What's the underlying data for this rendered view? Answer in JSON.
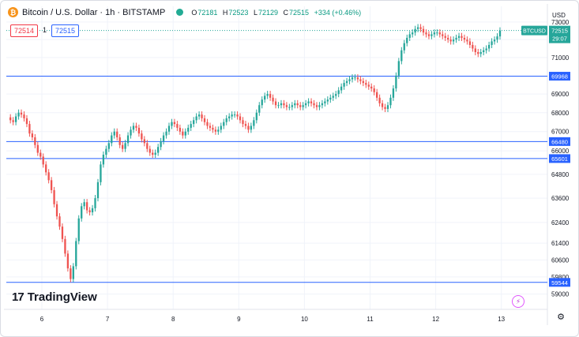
{
  "header": {
    "symbol_title": "Bitcoin / U.S. Dollar · 1h · BITSTAMP",
    "coin_icon": "bitcoin-icon",
    "ohlc": {
      "o_label": "O",
      "o": "72181",
      "h_label": "H",
      "h": "72523",
      "l_label": "L",
      "l": "72129",
      "c_label": "C",
      "c": "72515",
      "change": "+334 (+0.46%)"
    },
    "sell_price": "72514",
    "spread": "1",
    "buy_price": "72515"
  },
  "currency_label": "USD",
  "branding": {
    "logo_mark": "17",
    "logo_text": "TradingView"
  },
  "icons": {
    "settings": "gear-icon",
    "flash": "lightning-icon"
  },
  "colors": {
    "up": "#26a69a",
    "down": "#ef5350",
    "hline": "#2962ff",
    "axis_text": "#131722",
    "current_price_bg": "#26a69a"
  },
  "chart_data": {
    "type": "candlestick",
    "title": "Bitcoin / U.S. Dollar · 1h · BITSTAMP",
    "x_ticks": [
      "6",
      "7",
      "8",
      "9",
      "10",
      "11",
      "12",
      "13"
    ],
    "y_ticks": [
      73000,
      72000,
      71000,
      69000,
      68000,
      67000,
      66000,
      64800,
      63600,
      62400,
      61400,
      60600,
      59800,
      59000
    ],
    "ylim": [
      58300,
      73900
    ],
    "grid": true,
    "log_scale": true,
    "horizontal_levels": [
      {
        "label": "69968",
        "value": 69968
      },
      {
        "label": "66480",
        "value": 66480
      },
      {
        "label": "65601",
        "value": 65601
      },
      {
        "label": "59544",
        "value": 59544
      }
    ],
    "current_price": {
      "symbol": "BTCUSD",
      "value": "72515",
      "countdown": "29:07",
      "numeric": 72515
    },
    "candles_per_day": 24,
    "first_day": 5,
    "first_day_start_hour": 12,
    "closes": [
      67600,
      67500,
      67800,
      68000,
      67900,
      67700,
      67400,
      66900,
      66700,
      66300,
      65900,
      65700,
      65300,
      64900,
      64500,
      64000,
      63300,
      62700,
      62200,
      61600,
      60900,
      60200,
      59700,
      60300,
      61500,
      62600,
      63200,
      63400,
      63000,
      62900,
      63100,
      63600,
      64400,
      65300,
      65800,
      66100,
      66400,
      66800,
      67000,
      66700,
      66300,
      66100,
      66400,
      66800,
      67100,
      67300,
      67200,
      66900,
      66600,
      66400,
      66100,
      65900,
      65800,
      65900,
      66200,
      66500,
      66800,
      67000,
      67300,
      67500,
      67400,
      67200,
      67000,
      66800,
      67000,
      67200,
      67400,
      67600,
      67800,
      67900,
      67700,
      67500,
      67300,
      67200,
      67100,
      67000,
      67100,
      67300,
      67500,
      67700,
      67800,
      67900,
      67900,
      67800,
      67600,
      67400,
      67300,
      67100,
      67300,
      67600,
      68000,
      68400,
      68700,
      68900,
      69000,
      68800,
      68600,
      68400,
      68400,
      68500,
      68400,
      68300,
      68300,
      68400,
      68500,
      68400,
      68300,
      68400,
      68500,
      68600,
      68500,
      68400,
      68300,
      68400,
      68500,
      68600,
      68700,
      68800,
      68900,
      69000,
      69200,
      69400,
      69600,
      69700,
      69800,
      69900,
      69900,
      69800,
      69700,
      69600,
      69500,
      69400,
      69300,
      69100,
      68800,
      68500,
      68300,
      68200,
      68400,
      68800,
      69300,
      70000,
      70800,
      71400,
      71800,
      72100,
      72300,
      72400,
      72600,
      72700,
      72600,
      72400,
      72300,
      72200,
      72300,
      72400,
      72400,
      72300,
      72200,
      72100,
      72000,
      71900,
      72000,
      72100,
      72200,
      72100,
      72000,
      71900,
      71700,
      71500,
      71300,
      71200,
      71300,
      71400,
      71500,
      71700,
      71900,
      72000,
      72181,
      72515
    ]
  }
}
